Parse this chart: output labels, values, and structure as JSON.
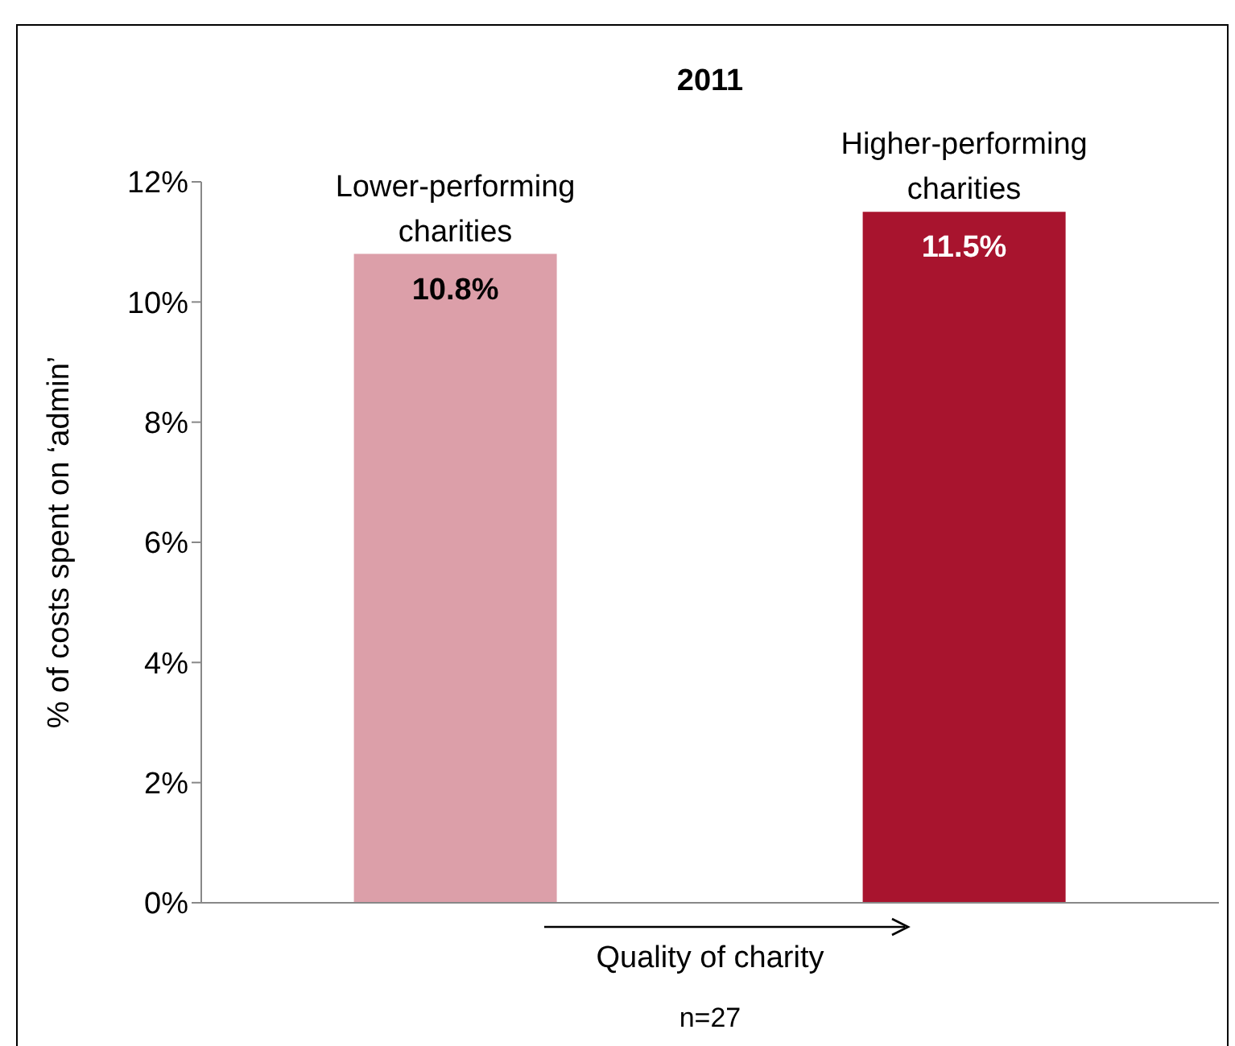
{
  "chart_data": {
    "type": "bar",
    "title": "2011",
    "categories": [
      "Lower-performing charities",
      "Higher-performing charities"
    ],
    "values": [
      10.8,
      11.5
    ],
    "colors": [
      "#dc9fa9",
      "#a8142e"
    ],
    "value_labels": [
      "10.8%",
      "11.5%"
    ],
    "ylabel": "% of costs spent on ‘admin’",
    "xlabel": "Quality of charity",
    "annotations": [
      "n=27"
    ],
    "ylim": [
      0,
      12
    ],
    "yticks": [
      {
        "value": 0,
        "label": "0%"
      },
      {
        "value": 2,
        "label": "2%"
      },
      {
        "value": 4,
        "label": "4%"
      },
      {
        "value": 6,
        "label": "6%"
      },
      {
        "value": 8,
        "label": "8%"
      },
      {
        "value": 10,
        "label": "10%"
      },
      {
        "value": 12,
        "label": "12%"
      }
    ],
    "tick_labels": "y",
    "grid": false,
    "legend": false
  }
}
